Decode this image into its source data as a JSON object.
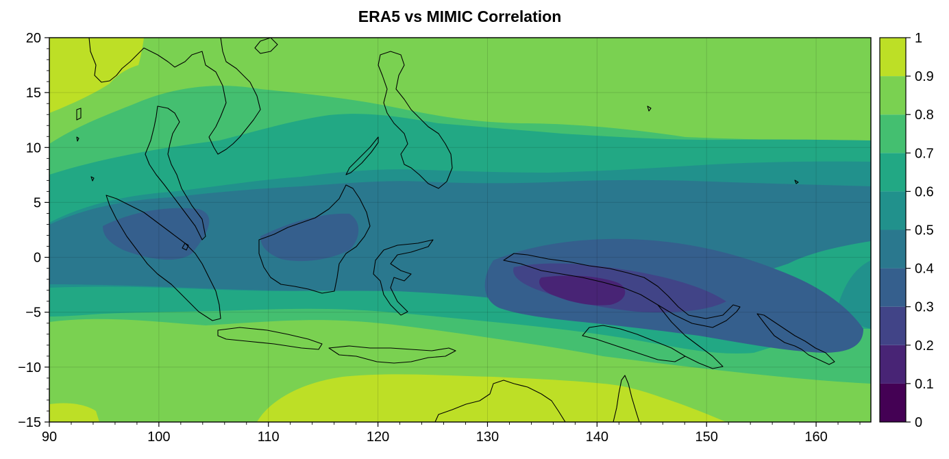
{
  "title": "ERA5 vs MIMIC Correlation",
  "map": {
    "lon_range": [
      90,
      165
    ],
    "lat_range": [
      -15,
      20
    ],
    "lon_ticks": [
      90,
      100,
      110,
      120,
      130,
      140,
      150,
      160
    ],
    "lon_tick_labels": [
      "90",
      "100",
      "110",
      "120",
      "130",
      "140",
      "150",
      "160"
    ],
    "lat_ticks": [
      20,
      15,
      10,
      5,
      0,
      -5,
      -10,
      -15
    ],
    "lat_tick_labels": [
      "20",
      "15",
      "10",
      "5",
      "0",
      "−5",
      "−10",
      "−15"
    ],
    "gridlines": true,
    "coastlines": true
  },
  "colorbar": {
    "levels": [
      0,
      0.1,
      0.2,
      0.3,
      0.4,
      0.5,
      0.6,
      0.7,
      0.8,
      0.9,
      1
    ],
    "tick_labels": [
      "0",
      "0.1",
      "0.2",
      "0.3",
      "0.4",
      "0.5",
      "0.6",
      "0.7",
      "0.8",
      "0.9",
      "1"
    ],
    "colors": [
      "#440154",
      "#482475",
      "#414487",
      "#355f8d",
      "#2a788e",
      "#21918c",
      "#22a884",
      "#44bf70",
      "#7ad151",
      "#bddf26",
      "#fde725"
    ],
    "placement": "right"
  }
}
